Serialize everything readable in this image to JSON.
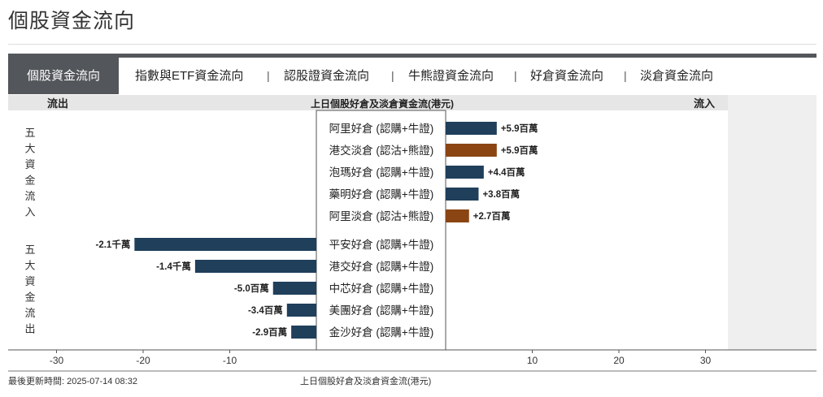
{
  "page": {
    "title": "個股資金流向"
  },
  "tabs": [
    {
      "label": "個股資金流向",
      "active": true
    },
    {
      "label": "指數與ETF資金流向"
    },
    {
      "label": "認股證資金流向"
    },
    {
      "label": "牛熊證資金流向"
    },
    {
      "label": "好倉資金流向"
    },
    {
      "label": "淡倉資金流向"
    }
  ],
  "tab_separator": "|",
  "header": {
    "outflow": "流出",
    "center": "上日個股好倉及淡倉資金流(港元)",
    "inflow": "流入"
  },
  "groups": {
    "inflow": "五大資金流入",
    "outflow": "五大資金流出"
  },
  "colors": {
    "bull": "#1f3f5b",
    "bear": "#8b4513",
    "header_bg": "#e6e6e6",
    "tab_active": "#53565a"
  },
  "chart_data": {
    "type": "bar",
    "orientation": "horizontal",
    "unit": "百萬港元",
    "xlim": [
      -35,
      35
    ],
    "xticks": [
      -30,
      -20,
      -10,
      10,
      20,
      30
    ],
    "rows": [
      {
        "group": "inflow",
        "name": "阿里好倉 (認購+牛證)",
        "value": 5.9,
        "label": "+5.9百萬",
        "side": "bull"
      },
      {
        "group": "inflow",
        "name": "港交淡倉 (認沽+熊證)",
        "value": 5.9,
        "label": "+5.9百萬",
        "side": "bear"
      },
      {
        "group": "inflow",
        "name": "泡瑪好倉 (認購+牛證)",
        "value": 4.4,
        "label": "+4.4百萬",
        "side": "bull"
      },
      {
        "group": "inflow",
        "name": "藥明好倉 (認購+牛證)",
        "value": 3.8,
        "label": "+3.8百萬",
        "side": "bull"
      },
      {
        "group": "inflow",
        "name": "阿里淡倉 (認沽+熊證)",
        "value": 2.7,
        "label": "+2.7百萬",
        "side": "bear"
      },
      {
        "group": "outflow",
        "name": "平安好倉 (認購+牛證)",
        "value": -21,
        "label": "-2.1千萬",
        "side": "bull"
      },
      {
        "group": "outflow",
        "name": "港交好倉 (認購+牛證)",
        "value": -14,
        "label": "-1.4千萬",
        "side": "bull"
      },
      {
        "group": "outflow",
        "name": "中芯好倉 (認購+牛證)",
        "value": -5.0,
        "label": "-5.0百萬",
        "side": "bull"
      },
      {
        "group": "outflow",
        "name": "美團好倉 (認購+牛證)",
        "value": -3.4,
        "label": "-3.4百萬",
        "side": "bull"
      },
      {
        "group": "outflow",
        "name": "金沙好倉 (認購+牛證)",
        "value": -2.9,
        "label": "-2.9百萬",
        "side": "bull"
      }
    ]
  },
  "footer": {
    "last_update": "最後更新時間: 2025-07-14 08:32",
    "caption": "上日個股好倉及淡倉資金流(港元)"
  }
}
